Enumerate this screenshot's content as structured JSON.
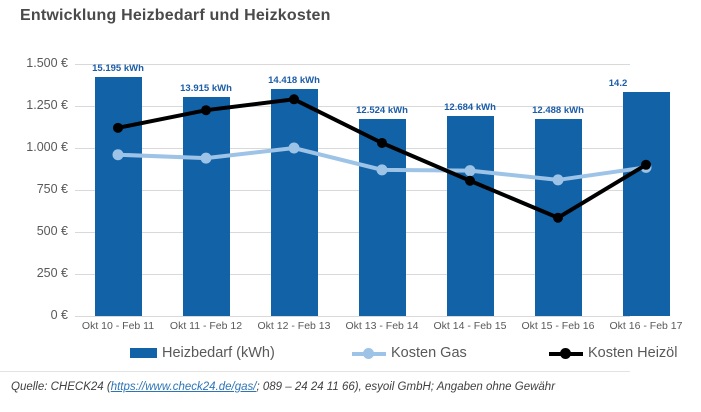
{
  "page": {
    "title": "Entwicklung Heizbedarf und Heizkosten"
  },
  "colors": {
    "bar_blue": "#1262a8",
    "bar_label_blue": "#1c5da8",
    "gas_line": "#9dc3e6",
    "oil_line": "#000000",
    "grid": "#d9d9d9",
    "axis_text": "#595959",
    "title_text": "#4a4a4a",
    "link_blue": "#2e75b6",
    "footer_text": "#404040"
  },
  "chart_data": {
    "type": "bar",
    "title": "Entwicklung Heizbedarf und Heizkosten",
    "categories": [
      "Okt 10 - Feb 11",
      "Okt 11 - Feb 12",
      "Okt 12 - Feb 13",
      "Okt 13 - Feb 14",
      "Okt 14 - Feb 15",
      "Okt 15 - Feb 16",
      "Okt 16 - Feb 17"
    ],
    "bar_series": {
      "name": "Heizbedarf (kWh)",
      "values": [
        15195,
        13915,
        14418,
        12524,
        12684,
        12488,
        14250
      ],
      "value_labels": [
        "15.195 kWh",
        "13.915 kWh",
        "14.418 kWh",
        "12.524 kWh",
        "12.684 kWh",
        "12.488 kWh",
        "14.2"
      ]
    },
    "line_series": [
      {
        "name": "Kosten Gas",
        "color": "#9dc3e6",
        "values": [
          960,
          940,
          1000,
          870,
          865,
          810,
          885
        ]
      },
      {
        "name": "Kosten Heizöl",
        "color": "#000000",
        "values": [
          1120,
          1225,
          1290,
          1030,
          805,
          585,
          900
        ]
      }
    ],
    "y_axis": {
      "ticks": [
        "1.500 €",
        "1.250 €",
        "1.000 €",
        "750 €",
        "500 €",
        "250 €",
        "0 €"
      ],
      "tick_values": [
        1500,
        1250,
        1000,
        750,
        500,
        250,
        0
      ],
      "ylim": [
        0,
        1500
      ]
    },
    "hidden_kwh_axis_max": 16000,
    "grid": "horizontal",
    "legend_position": "bottom"
  },
  "legend": {
    "items": [
      {
        "label": "Heizbedarf (kWh)",
        "marker": "bar-swatch"
      },
      {
        "label": "Kosten Gas",
        "marker": "line-dot"
      },
      {
        "label": "Kosten Heizöl",
        "marker": "line-dot"
      }
    ]
  },
  "footer": {
    "prefix": "Quelle: CHECK24 (",
    "link": "https://www.check24.de/gas/",
    "suffix": "; 089 – 24 24 11 66), esyoil GmbH; Angaben ohne Gewähr"
  }
}
